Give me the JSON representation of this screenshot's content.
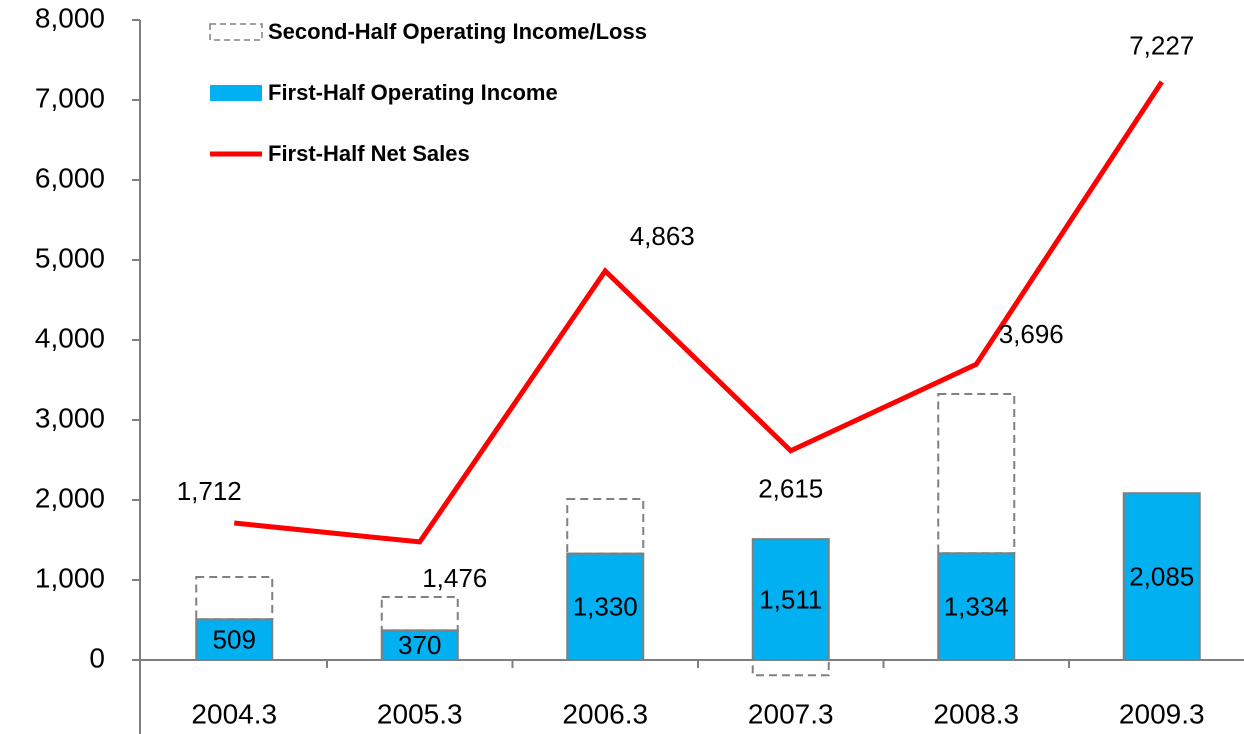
{
  "chart_data": {
    "type": "bar",
    "legend": "upper left",
    "categories": [
      "2004.3",
      "2005.3",
      "2006.3",
      "2007.3",
      "2008.3",
      "2009.3"
    ],
    "series": [
      {
        "name": "Second-Half Operating Income/Loss",
        "type": "bar",
        "color": "#808080",
        "line_style": "dashed",
        "values": [
          528,
          417,
          682,
          -190,
          1991,
          null
        ]
      },
      {
        "name": "First-Half Operating Income",
        "type": "bar",
        "color": "#00b0f0",
        "values": [
          509,
          370,
          1330,
          1511,
          1334,
          2085
        ],
        "value_labels": [
          "509",
          "370",
          "1,330",
          "1,511",
          "1,334",
          "2,085"
        ]
      },
      {
        "name": "First-Half Net Sales",
        "type": "line",
        "color": "#ff0000",
        "values": [
          1712,
          1476,
          4863,
          2615,
          3696,
          7227
        ],
        "value_labels": [
          "1,712",
          "1,476",
          "4,863",
          "2,615",
          "3,696",
          "7,227"
        ]
      }
    ],
    "ylim": [
      0,
      8000
    ],
    "yticks": [
      0,
      {
        "value": 1000,
        "label": "1,000"
      },
      {
        "value": 2000,
        "label": "2,000"
      },
      {
        "value": 3000,
        "label": "3,000"
      },
      {
        "value": 4000,
        "label": "4,000"
      },
      {
        "value": 5000,
        "label": "5,000"
      },
      {
        "value": 6000,
        "label": "6,000"
      },
      {
        "value": 7000,
        "label": "7,000"
      },
      {
        "value": 8000,
        "label": "8,000"
      }
    ]
  }
}
